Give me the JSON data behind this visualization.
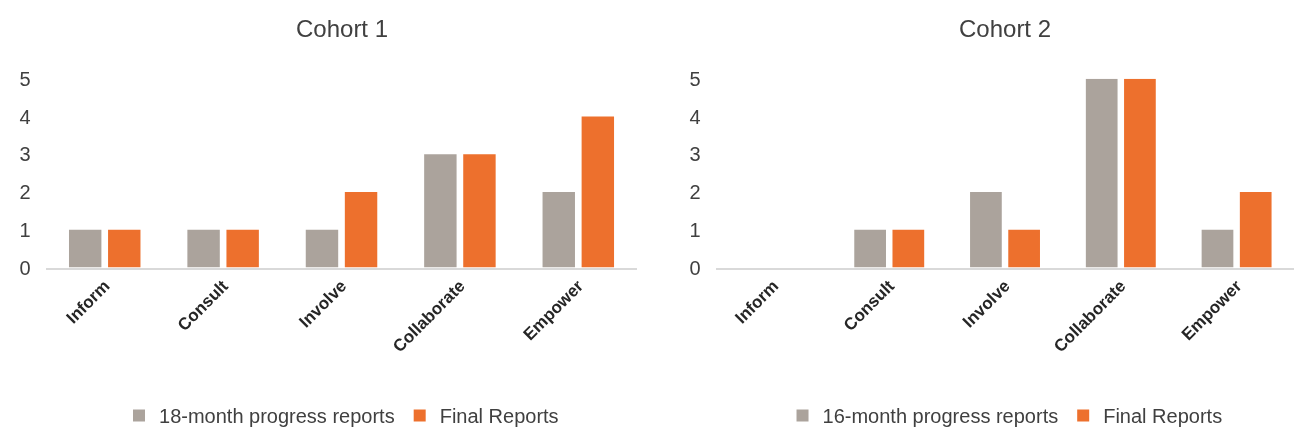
{
  "chart_data": [
    {
      "type": "bar",
      "title": "Cohort 1",
      "categories": [
        "Inform",
        "Consult",
        "Involve",
        "Collaborate",
        "Empower"
      ],
      "series": [
        {
          "name": "18-month progress reports",
          "color": "#aba39c",
          "values": [
            1,
            1,
            1,
            3,
            2
          ]
        },
        {
          "name": "Final Reports",
          "color": "#ed702d",
          "values": [
            1,
            1,
            2,
            3,
            4
          ]
        }
      ],
      "ylim": [
        0,
        5
      ],
      "yticks": [
        0,
        1,
        2,
        3,
        4,
        5
      ],
      "grid": false,
      "legend": "bottom"
    },
    {
      "type": "bar",
      "title": "Cohort 2",
      "categories": [
        "Inform",
        "Consult",
        "Involve",
        "Collaborate",
        "Empower"
      ],
      "series": [
        {
          "name": "16-month progress reports",
          "color": "#aba39c",
          "values": [
            0,
            1,
            2,
            5,
            1
          ]
        },
        {
          "name": "Final Reports",
          "color": "#ed702d",
          "values": [
            0,
            1,
            1,
            5,
            2
          ]
        }
      ],
      "ylim": [
        0,
        5
      ],
      "yticks": [
        0,
        1,
        2,
        3,
        4,
        5
      ],
      "grid": false,
      "legend": "bottom"
    }
  ]
}
